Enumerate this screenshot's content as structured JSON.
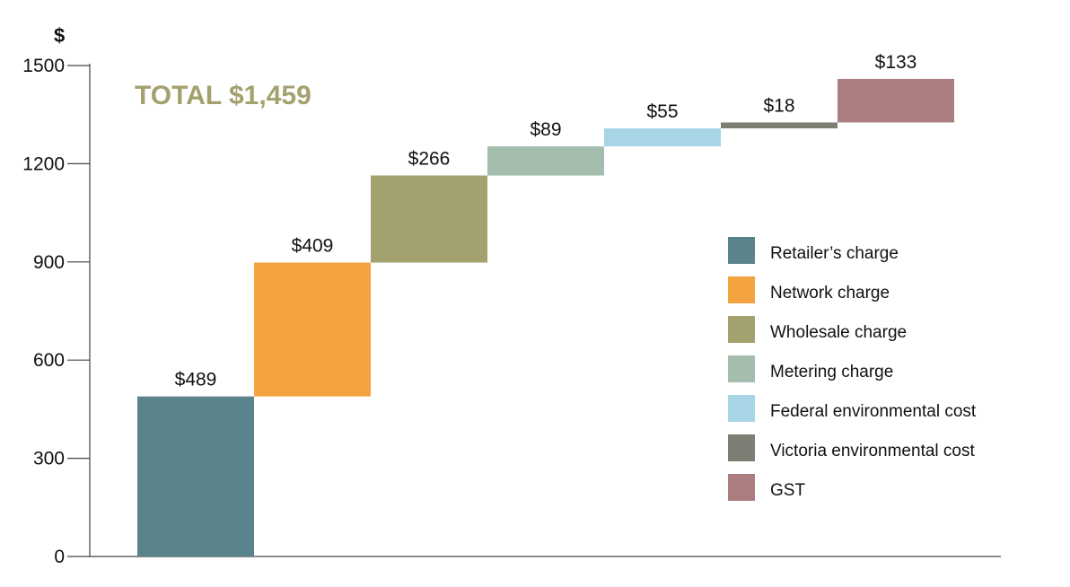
{
  "chart_data": {
    "type": "bar",
    "subtype": "waterfall",
    "title": "",
    "annotation": "TOTAL $1,459",
    "xlabel": "",
    "ylabel": "$",
    "ylim": [
      0,
      1500
    ],
    "yticks": [
      0,
      300,
      600,
      900,
      1200,
      1500
    ],
    "grid": false,
    "legend_position": "right",
    "categories": [
      "Retailer’s charge",
      "Network charge",
      "Wholesale charge",
      "Metering charge",
      "Federal environmental cost",
      "Victoria environmental cost",
      "GST"
    ],
    "values": [
      489,
      409,
      266,
      89,
      55,
      18,
      133
    ],
    "data_labels": [
      "$489",
      "$409",
      "$266",
      "$89",
      "$55",
      "$18",
      "$133"
    ],
    "colors": [
      "#5b838b",
      "#f3a33f",
      "#a3a16d",
      "#a5bdad",
      "#a8d5e6",
      "#7e7f74",
      "#ac7d7f"
    ]
  }
}
